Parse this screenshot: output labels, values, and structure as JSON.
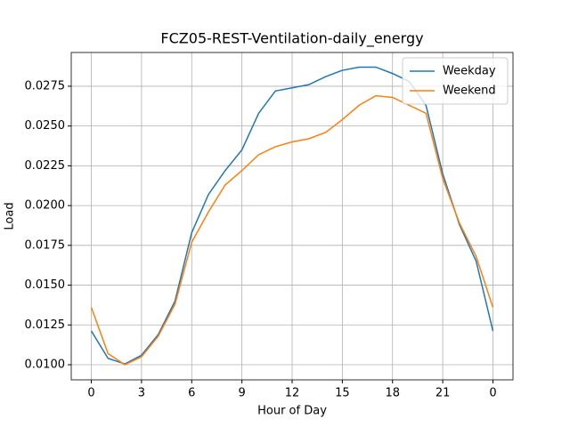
{
  "chart_data": {
    "type": "line",
    "title": "FCZ05-REST-Ventilation-daily_energy",
    "x_label": "Hour of Day",
    "y_label": "Load",
    "x": [
      0,
      1,
      2,
      3,
      4,
      5,
      6,
      7,
      8,
      9,
      10,
      11,
      12,
      13,
      14,
      15,
      16,
      17,
      18,
      19,
      20,
      21,
      22,
      23,
      24
    ],
    "series": [
      {
        "name": "Weekday",
        "color": "#1f77b4",
        "values": [
          0.01212,
          0.0104,
          0.01005,
          0.0106,
          0.0119,
          0.014,
          0.0183,
          0.0207,
          0.0222,
          0.0235,
          0.0258,
          0.0272,
          0.0274,
          0.0276,
          0.0281,
          0.0285,
          0.0287,
          0.0287,
          0.0283,
          0.0278,
          0.0263,
          0.022,
          0.0188,
          0.0165,
          0.01212
        ]
      },
      {
        "name": "Weekend",
        "color": "#ff7f0e",
        "values": [
          0.0136,
          0.0107,
          0.01,
          0.0105,
          0.0118,
          0.0138,
          0.0177,
          0.0196,
          0.0213,
          0.0222,
          0.0232,
          0.0237,
          0.024,
          0.0242,
          0.0246,
          0.0254,
          0.0263,
          0.0269,
          0.0268,
          0.0263,
          0.0258,
          0.0217,
          0.0189,
          0.0168,
          0.0136
        ]
      }
    ],
    "xlim": [
      -1.2,
      25.2
    ],
    "xticks": [
      0,
      3,
      6,
      9,
      12,
      15,
      18,
      21,
      {
        "value": 24,
        "label": "0"
      }
    ],
    "ylim": [
      0.00905,
      0.02962
    ],
    "yticks": [
      {
        "value": 0.01,
        "label": "0.0100"
      },
      {
        "value": 0.0125,
        "label": "0.0125"
      },
      {
        "value": 0.015,
        "label": "0.0150"
      },
      {
        "value": 0.0175,
        "label": "0.0175"
      },
      {
        "value": 0.02,
        "label": "0.0200"
      },
      {
        "value": 0.0225,
        "label": "0.0225"
      },
      {
        "value": 0.025,
        "label": "0.0250"
      },
      {
        "value": 0.0275,
        "label": "0.0275"
      }
    ],
    "grid": true,
    "legend": "upper-right"
  }
}
